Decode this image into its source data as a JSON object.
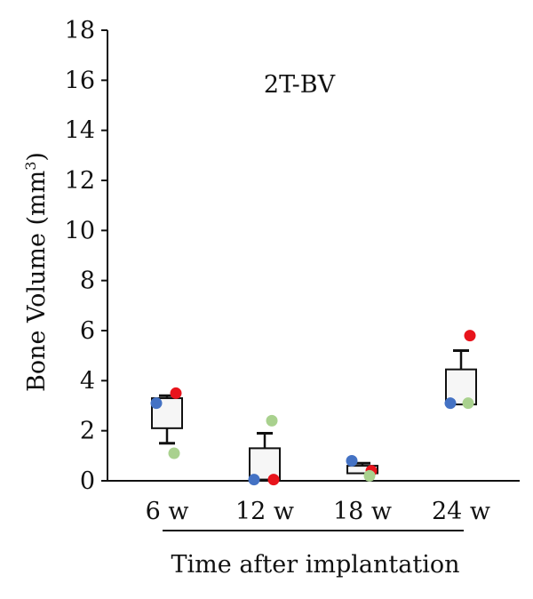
{
  "chart_data": {
    "type": "box",
    "title": "2T-BV",
    "ylabel": "Bone Volume (mm",
    "ylabel_sup": "3",
    "ylabel_close": ")",
    "xlabel": "Time after implantation",
    "ylim": [
      0,
      18
    ],
    "yticks": [
      0,
      2,
      4,
      6,
      8,
      10,
      12,
      14,
      16,
      18
    ],
    "categories": [
      "6 w",
      "12 w",
      "18 w",
      "24 w"
    ],
    "boxes": [
      {
        "category": "6 w",
        "q1": 2.1,
        "median": 3.1,
        "q3": 3.3,
        "whisker_high": 3.4,
        "whisker_low": 1.5
      },
      {
        "category": "12 w",
        "q1": 0.05,
        "median": 0.05,
        "q3": 1.3,
        "whisker_high": 1.9,
        "whisker_low": null
      },
      {
        "category": "18 w",
        "q1": 0.3,
        "median": 0.45,
        "q3": 0.6,
        "whisker_high": 0.7,
        "whisker_low": null
      },
      {
        "category": "24 w",
        "q1": 3.05,
        "median": 3.1,
        "q3": 4.45,
        "whisker_high": 5.2,
        "whisker_low": null
      }
    ],
    "points": [
      {
        "category": "6 w",
        "color": "blue",
        "value": 3.1
      },
      {
        "category": "6 w",
        "color": "red",
        "value": 3.5
      },
      {
        "category": "6 w",
        "color": "green",
        "value": 1.1
      },
      {
        "category": "12 w",
        "color": "blue",
        "value": 0.05
      },
      {
        "category": "12 w",
        "color": "red",
        "value": 0.05
      },
      {
        "category": "12 w",
        "color": "green",
        "value": 2.4
      },
      {
        "category": "18 w",
        "color": "blue",
        "value": 0.8
      },
      {
        "category": "18 w",
        "color": "red",
        "value": 0.4
      },
      {
        "category": "18 w",
        "color": "green",
        "value": 0.2
      },
      {
        "category": "24 w",
        "color": "blue",
        "value": 3.1
      },
      {
        "category": "24 w",
        "color": "red",
        "value": 5.8
      },
      {
        "category": "24 w",
        "color": "green",
        "value": 3.1
      }
    ],
    "colors": {
      "blue": "#4472c4",
      "red": "#e8141c",
      "green": "#a9d18e",
      "box_fill": "#f6f6f6",
      "box_stroke": "#111111"
    },
    "grid": false
  }
}
